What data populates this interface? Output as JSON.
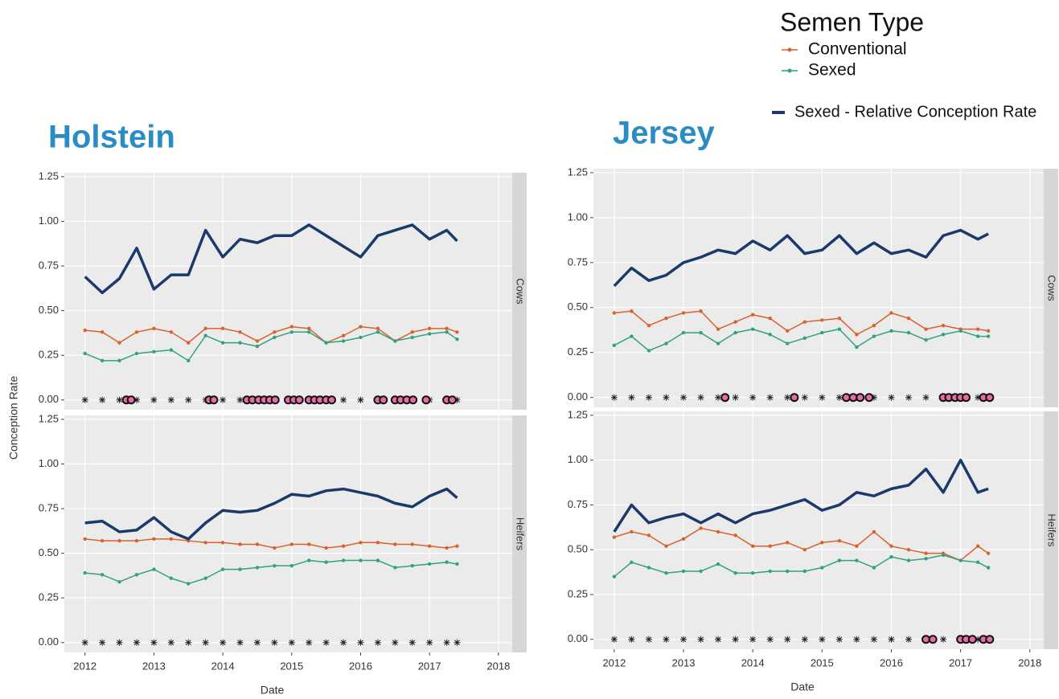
{
  "chart_data": [
    {
      "type": "line",
      "title": "Holstein",
      "facet": "Cows",
      "ylabel": "Conception Rate",
      "legend_title": "Semen Type",
      "x": [
        2012,
        2012.25,
        2012.5,
        2012.75,
        2013,
        2013.25,
        2013.5,
        2013.75,
        2014,
        2014.25,
        2014.5,
        2014.75,
        2015,
        2015.25,
        2015.5,
        2015.75,
        2016,
        2016.25,
        2016.5,
        2016.75,
        2017,
        2017.25,
        2017.4
      ],
      "series": [
        {
          "name": "Conventional",
          "color": "#d9622b",
          "values": [
            0.39,
            0.38,
            0.32,
            0.38,
            0.4,
            0.38,
            0.32,
            0.4,
            0.4,
            0.38,
            0.33,
            0.38,
            0.41,
            0.4,
            0.32,
            0.36,
            0.41,
            0.4,
            0.33,
            0.38,
            0.4,
            0.4,
            0.38
          ]
        },
        {
          "name": "Sexed",
          "color": "#2fa37f",
          "values": [
            0.26,
            0.22,
            0.22,
            0.26,
            0.27,
            0.28,
            0.22,
            0.36,
            0.32,
            0.32,
            0.3,
            0.35,
            0.38,
            0.38,
            0.32,
            0.33,
            0.35,
            0.38,
            0.33,
            0.35,
            0.37,
            0.38,
            0.34
          ]
        },
        {
          "name": "Sexed - Relative Conception Rate",
          "color": "#1a3a6b",
          "values": [
            0.69,
            0.6,
            0.68,
            0.85,
            0.62,
            0.7,
            0.7,
            0.95,
            0.8,
            0.9,
            0.88,
            0.92,
            0.92,
            0.98,
            0.92,
            0.86,
            0.8,
            0.92,
            0.95,
            0.98,
            0.9,
            0.95,
            0.89
          ]
        }
      ],
      "significant_x": [
        2012.6,
        2012.67,
        2013.8,
        2013.87,
        2014.35,
        2014.43,
        2014.52,
        2014.6,
        2014.68,
        2014.76,
        2014.95,
        2015.03,
        2015.11,
        2015.25,
        2015.33,
        2015.41,
        2015.5,
        2015.58,
        2016.25,
        2016.33,
        2016.5,
        2016.58,
        2016.67,
        2016.76,
        2016.95,
        2017.25,
        2017.33
      ],
      "xlim": [
        2011.7,
        2018.2
      ],
      "ylim": [
        -0.055,
        1.272
      ],
      "xticks": [
        2012,
        2013,
        2014,
        2015,
        2016,
        2017,
        2018
      ],
      "yticks": [
        {
          "value": 0,
          "label": "0.00"
        },
        {
          "value": 0.25,
          "label": "0.25"
        },
        {
          "value": 0.5,
          "label": "0.50"
        },
        {
          "value": 0.75,
          "label": "0.75"
        },
        {
          "value": 1,
          "label": "1.00"
        },
        {
          "value": 1.25,
          "label": "1.25"
        }
      ]
    },
    {
      "type": "line",
      "facet": "Heifers",
      "xlabel": "Date",
      "x": [
        2012,
        2012.25,
        2012.5,
        2012.75,
        2013,
        2013.25,
        2013.5,
        2013.75,
        2014,
        2014.25,
        2014.5,
        2014.75,
        2015,
        2015.25,
        2015.5,
        2015.75,
        2016,
        2016.25,
        2016.5,
        2016.75,
        2017,
        2017.25,
        2017.4
      ],
      "series": [
        {
          "name": "Conventional",
          "color": "#d9622b",
          "values": [
            0.58,
            0.57,
            0.57,
            0.57,
            0.58,
            0.58,
            0.57,
            0.56,
            0.56,
            0.55,
            0.55,
            0.53,
            0.55,
            0.55,
            0.53,
            0.54,
            0.56,
            0.56,
            0.55,
            0.55,
            0.54,
            0.53,
            0.54
          ]
        },
        {
          "name": "Sexed",
          "color": "#2fa37f",
          "values": [
            0.39,
            0.38,
            0.34,
            0.38,
            0.41,
            0.36,
            0.33,
            0.36,
            0.41,
            0.41,
            0.42,
            0.43,
            0.43,
            0.46,
            0.45,
            0.46,
            0.46,
            0.46,
            0.42,
            0.43,
            0.44,
            0.45,
            0.44
          ]
        },
        {
          "name": "Sexed - Relative Conception Rate",
          "color": "#1a3a6b",
          "values": [
            0.67,
            0.68,
            0.62,
            0.63,
            0.7,
            0.62,
            0.58,
            0.67,
            0.74,
            0.73,
            0.74,
            0.78,
            0.83,
            0.82,
            0.85,
            0.86,
            0.84,
            0.82,
            0.78,
            0.76,
            0.82,
            0.86,
            0.81
          ]
        }
      ],
      "significant_x": [],
      "xlim": [
        2011.7,
        2018.2
      ],
      "ylim": [
        -0.055,
        1.272
      ],
      "xticks": [
        2012,
        2013,
        2014,
        2015,
        2016,
        2017,
        2018
      ],
      "yticks": [
        {
          "value": 0,
          "label": "0.00"
        },
        {
          "value": 0.25,
          "label": "0.25"
        },
        {
          "value": 0.5,
          "label": "0.50"
        },
        {
          "value": 0.75,
          "label": "0.75"
        },
        {
          "value": 1,
          "label": "1.00"
        },
        {
          "value": 1.25,
          "label": "1.25"
        }
      ]
    },
    {
      "type": "line",
      "title": "Jersey",
      "facet": "Cows",
      "x": [
        2012,
        2012.25,
        2012.5,
        2012.75,
        2013,
        2013.25,
        2013.5,
        2013.75,
        2014,
        2014.25,
        2014.5,
        2014.75,
        2015,
        2015.25,
        2015.5,
        2015.75,
        2016,
        2016.25,
        2016.5,
        2016.75,
        2017,
        2017.25,
        2017.4
      ],
      "series": [
        {
          "name": "Conventional",
          "color": "#d9622b",
          "values": [
            0.47,
            0.48,
            0.4,
            0.44,
            0.47,
            0.48,
            0.38,
            0.42,
            0.46,
            0.44,
            0.37,
            0.42,
            0.43,
            0.44,
            0.35,
            0.4,
            0.47,
            0.44,
            0.38,
            0.4,
            0.38,
            0.38,
            0.37
          ]
        },
        {
          "name": "Sexed",
          "color": "#2fa37f",
          "values": [
            0.29,
            0.34,
            0.26,
            0.3,
            0.36,
            0.36,
            0.3,
            0.36,
            0.38,
            0.35,
            0.3,
            0.33,
            0.36,
            0.38,
            0.28,
            0.34,
            0.37,
            0.36,
            0.32,
            0.35,
            0.37,
            0.34,
            0.34
          ]
        },
        {
          "name": "Sexed - Relative Conception Rate",
          "color": "#1a3a6b",
          "values": [
            0.62,
            0.72,
            0.65,
            0.68,
            0.75,
            0.78,
            0.82,
            0.8,
            0.87,
            0.82,
            0.9,
            0.8,
            0.82,
            0.9,
            0.8,
            0.86,
            0.8,
            0.82,
            0.78,
            0.9,
            0.93,
            0.88,
            0.91
          ]
        }
      ],
      "significant_x": [
        2013.6,
        2014.6,
        2015.35,
        2015.45,
        2015.55,
        2015.68,
        2016.75,
        2016.83,
        2016.92,
        2017.0,
        2017.08,
        2017.33,
        2017.42
      ],
      "xlim": [
        2011.7,
        2018.2
      ],
      "ylim": [
        -0.055,
        1.272
      ],
      "xticks": [
        2012,
        2013,
        2014,
        2015,
        2016,
        2017,
        2018
      ],
      "yticks": [
        {
          "value": 0,
          "label": "0.00"
        },
        {
          "value": 0.25,
          "label": "0.25"
        },
        {
          "value": 0.5,
          "label": "0.50"
        },
        {
          "value": 0.75,
          "label": "0.75"
        },
        {
          "value": 1,
          "label": "1.00"
        },
        {
          "value": 1.25,
          "label": "1.25"
        }
      ]
    },
    {
      "type": "line",
      "facet": "Heifers",
      "xlabel": "Date",
      "x": [
        2012,
        2012.25,
        2012.5,
        2012.75,
        2013,
        2013.25,
        2013.5,
        2013.75,
        2014,
        2014.25,
        2014.5,
        2014.75,
        2015,
        2015.25,
        2015.5,
        2015.75,
        2016,
        2016.25,
        2016.5,
        2016.75,
        2017,
        2017.25,
        2017.4
      ],
      "series": [
        {
          "name": "Conventional",
          "color": "#d9622b",
          "values": [
            0.57,
            0.6,
            0.58,
            0.52,
            0.56,
            0.62,
            0.6,
            0.58,
            0.52,
            0.52,
            0.54,
            0.5,
            0.54,
            0.55,
            0.52,
            0.6,
            0.52,
            0.5,
            0.48,
            0.48,
            0.44,
            0.52,
            0.48
          ]
        },
        {
          "name": "Sexed",
          "color": "#2fa37f",
          "values": [
            0.35,
            0.43,
            0.4,
            0.37,
            0.38,
            0.38,
            0.42,
            0.37,
            0.37,
            0.38,
            0.38,
            0.38,
            0.4,
            0.44,
            0.44,
            0.4,
            0.46,
            0.44,
            0.45,
            0.47,
            0.44,
            0.43,
            0.4
          ]
        },
        {
          "name": "Sexed - Relative Conception Rate",
          "color": "#1a3a6b",
          "values": [
            0.6,
            0.75,
            0.65,
            0.68,
            0.7,
            0.65,
            0.7,
            0.65,
            0.7,
            0.72,
            0.75,
            0.78,
            0.72,
            0.75,
            0.82,
            0.8,
            0.84,
            0.86,
            0.95,
            0.82,
            1.0,
            0.82,
            0.84
          ]
        }
      ],
      "significant_x": [
        2016.5,
        2016.6,
        2017.0,
        2017.08,
        2017.17,
        2017.33,
        2017.42
      ],
      "xlim": [
        2011.7,
        2018.2
      ],
      "ylim": [
        -0.055,
        1.272
      ],
      "xticks": [
        2012,
        2013,
        2014,
        2015,
        2016,
        2017,
        2018
      ],
      "yticks": [
        {
          "value": 0,
          "label": "0.00"
        },
        {
          "value": 0.25,
          "label": "0.25"
        },
        {
          "value": 0.5,
          "label": "0.50"
        },
        {
          "value": 0.75,
          "label": "0.75"
        },
        {
          "value": 1,
          "label": "1.00"
        },
        {
          "value": 1.25,
          "label": "1.25"
        }
      ]
    }
  ]
}
